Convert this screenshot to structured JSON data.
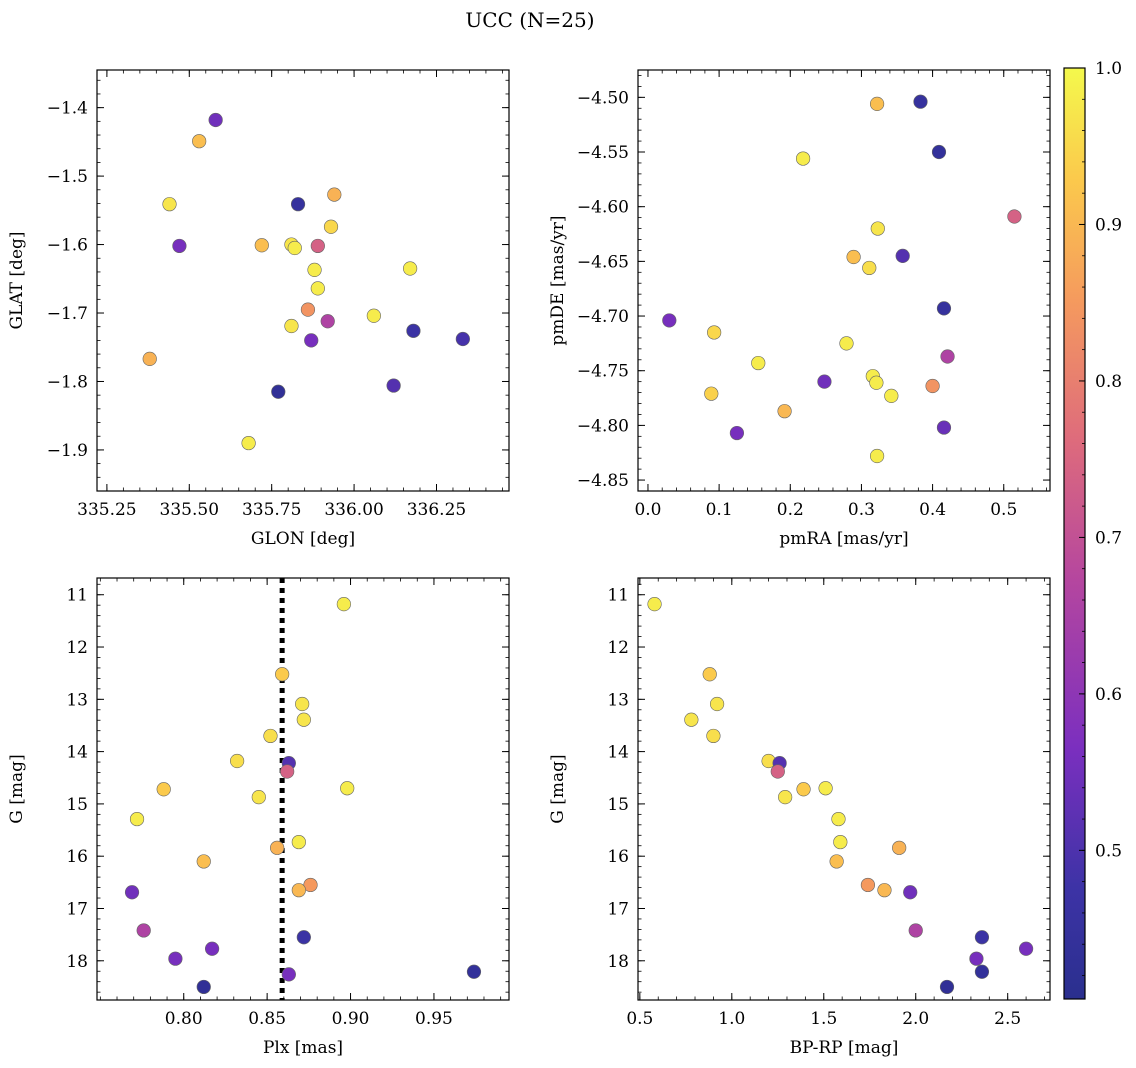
{
  "figure": {
    "title": "UCC (N=25)"
  },
  "colorbar": {
    "min": 0.405,
    "max": 1.0,
    "ticks": [
      "0.5",
      "0.6",
      "0.7",
      "0.8",
      "0.9",
      "1.0"
    ],
    "tick_values": [
      0.5,
      0.6,
      0.7,
      0.8,
      0.9,
      1.0
    ],
    "colormap": "plasma"
  },
  "chart_data": [
    {
      "type": "scatter",
      "name": "glon-glat",
      "xlabel": "GLON [deg]",
      "ylabel": "GLAT [deg]",
      "xlim": [
        335.22,
        336.47
      ],
      "ylim": [
        -1.96,
        -1.345
      ],
      "xticks": [
        335.25,
        335.5,
        335.75,
        336.0,
        336.25
      ],
      "xtick_labels": [
        "335.25",
        "335.50",
        "335.75",
        "336.00",
        "336.25"
      ],
      "yticks": [
        -1.4,
        -1.5,
        -1.6,
        -1.7,
        -1.8,
        -1.9
      ],
      "ytick_labels": [
        "−1.4",
        "−1.5",
        "−1.6",
        "−1.7",
        "−1.8",
        "−1.9"
      ],
      "points": [
        {
          "x": 335.58,
          "y": -1.418,
          "c": 0.55
        },
        {
          "x": 335.53,
          "y": -1.449,
          "c": 0.91
        },
        {
          "x": 335.44,
          "y": -1.541,
          "c": 0.97
        },
        {
          "x": 335.47,
          "y": -1.602,
          "c": 0.56
        },
        {
          "x": 335.83,
          "y": -1.541,
          "c": 0.45
        },
        {
          "x": 335.94,
          "y": -1.527,
          "c": 0.89
        },
        {
          "x": 335.93,
          "y": -1.574,
          "c": 0.95
        },
        {
          "x": 335.72,
          "y": -1.601,
          "c": 0.91
        },
        {
          "x": 335.81,
          "y": -1.6,
          "c": 0.97
        },
        {
          "x": 335.82,
          "y": -1.605,
          "c": 0.98
        },
        {
          "x": 335.89,
          "y": -1.602,
          "c": 0.74
        },
        {
          "x": 335.88,
          "y": -1.637,
          "c": 0.98
        },
        {
          "x": 336.17,
          "y": -1.635,
          "c": 0.98
        },
        {
          "x": 335.89,
          "y": -1.664,
          "c": 0.98
        },
        {
          "x": 335.86,
          "y": -1.695,
          "c": 0.84
        },
        {
          "x": 336.06,
          "y": -1.704,
          "c": 0.98
        },
        {
          "x": 335.92,
          "y": -1.712,
          "c": 0.66
        },
        {
          "x": 335.81,
          "y": -1.719,
          "c": 0.97
        },
        {
          "x": 336.18,
          "y": -1.726,
          "c": 0.47
        },
        {
          "x": 335.87,
          "y": -1.74,
          "c": 0.56
        },
        {
          "x": 336.33,
          "y": -1.738,
          "c": 0.49
        },
        {
          "x": 335.38,
          "y": -1.767,
          "c": 0.89
        },
        {
          "x": 336.12,
          "y": -1.806,
          "c": 0.51
        },
        {
          "x": 335.77,
          "y": -1.815,
          "c": 0.43
        },
        {
          "x": 335.68,
          "y": -1.89,
          "c": 0.98
        }
      ]
    },
    {
      "type": "scatter",
      "name": "pmra-pmde",
      "xlabel": "pmRA [mas/yr]",
      "ylabel": "pmDE [mas/yr]",
      "xlim": [
        -0.014,
        0.565
      ],
      "ylim": [
        -4.86,
        -4.475
      ],
      "xticks": [
        0.0,
        0.1,
        0.2,
        0.3,
        0.4,
        0.5
      ],
      "xtick_labels": [
        "0.0",
        "0.1",
        "0.2",
        "0.3",
        "0.4",
        "0.5"
      ],
      "yticks": [
        -4.5,
        -4.55,
        -4.6,
        -4.65,
        -4.7,
        -4.75,
        -4.8,
        -4.85
      ],
      "ytick_labels": [
        "−4.50",
        "−4.55",
        "−4.60",
        "−4.65",
        "−4.70",
        "−4.75",
        "−4.80",
        "−4.85"
      ],
      "points": [
        {
          "x": 0.322,
          "y": -4.506,
          "c": 0.91
        },
        {
          "x": 0.383,
          "y": -4.504,
          "c": 0.45
        },
        {
          "x": 0.409,
          "y": -4.55,
          "c": 0.44
        },
        {
          "x": 0.218,
          "y": -4.556,
          "c": 0.98
        },
        {
          "x": 0.515,
          "y": -4.609,
          "c": 0.74
        },
        {
          "x": 0.323,
          "y": -4.62,
          "c": 0.97
        },
        {
          "x": 0.289,
          "y": -4.646,
          "c": 0.91
        },
        {
          "x": 0.358,
          "y": -4.645,
          "c": 0.51
        },
        {
          "x": 0.311,
          "y": -4.656,
          "c": 0.96
        },
        {
          "x": 0.416,
          "y": -4.693,
          "c": 0.45
        },
        {
          "x": 0.03,
          "y": -4.704,
          "c": 0.56
        },
        {
          "x": 0.093,
          "y": -4.715,
          "c": 0.95
        },
        {
          "x": 0.279,
          "y": -4.725,
          "c": 0.98
        },
        {
          "x": 0.421,
          "y": -4.737,
          "c": 0.66
        },
        {
          "x": 0.155,
          "y": -4.743,
          "c": 0.98
        },
        {
          "x": 0.316,
          "y": -4.755,
          "c": 0.98
        },
        {
          "x": 0.248,
          "y": -4.76,
          "c": 0.55
        },
        {
          "x": 0.321,
          "y": -4.761,
          "c": 0.98
        },
        {
          "x": 0.4,
          "y": -4.764,
          "c": 0.84
        },
        {
          "x": 0.089,
          "y": -4.771,
          "c": 0.94
        },
        {
          "x": 0.342,
          "y": -4.773,
          "c": 0.98
        },
        {
          "x": 0.192,
          "y": -4.787,
          "c": 0.9
        },
        {
          "x": 0.416,
          "y": -4.802,
          "c": 0.54
        },
        {
          "x": 0.125,
          "y": -4.807,
          "c": 0.56
        },
        {
          "x": 0.322,
          "y": -4.828,
          "c": 0.98
        }
      ]
    },
    {
      "type": "scatter",
      "name": "plx-g",
      "xlabel": "Plx [mas]",
      "ylabel": "G [mag]",
      "xlim": [
        0.748,
        0.995
      ],
      "ylim": [
        18.75,
        10.68
      ],
      "reference_line": {
        "x": 0.859,
        "style": "dotted"
      },
      "xticks": [
        0.8,
        0.85,
        0.9,
        0.95
      ],
      "xtick_labels": [
        "0.80",
        "0.85",
        "0.90",
        "0.95"
      ],
      "yticks": [
        11,
        12,
        13,
        14,
        15,
        16,
        17,
        18
      ],
      "ytick_labels": [
        "11",
        "12",
        "13",
        "14",
        "15",
        "16",
        "17",
        "18"
      ],
      "points": [
        {
          "x": 0.896,
          "y": 11.18,
          "c": 0.98
        },
        {
          "x": 0.859,
          "y": 12.52,
          "c": 0.93
        },
        {
          "x": 0.871,
          "y": 13.09,
          "c": 0.97
        },
        {
          "x": 0.872,
          "y": 13.39,
          "c": 0.97
        },
        {
          "x": 0.852,
          "y": 13.7,
          "c": 0.96
        },
        {
          "x": 0.832,
          "y": 14.18,
          "c": 0.96
        },
        {
          "x": 0.863,
          "y": 14.22,
          "c": 0.51
        },
        {
          "x": 0.862,
          "y": 14.38,
          "c": 0.74
        },
        {
          "x": 0.788,
          "y": 14.72,
          "c": 0.93
        },
        {
          "x": 0.898,
          "y": 14.7,
          "c": 0.98
        },
        {
          "x": 0.845,
          "y": 14.87,
          "c": 0.97
        },
        {
          "x": 0.772,
          "y": 15.29,
          "c": 0.98
        },
        {
          "x": 0.869,
          "y": 15.73,
          "c": 0.98
        },
        {
          "x": 0.856,
          "y": 15.84,
          "c": 0.89
        },
        {
          "x": 0.812,
          "y": 16.1,
          "c": 0.91
        },
        {
          "x": 0.876,
          "y": 16.55,
          "c": 0.85
        },
        {
          "x": 0.869,
          "y": 16.65,
          "c": 0.9
        },
        {
          "x": 0.769,
          "y": 16.69,
          "c": 0.55
        },
        {
          "x": 0.776,
          "y": 17.42,
          "c": 0.66
        },
        {
          "x": 0.872,
          "y": 17.55,
          "c": 0.47
        },
        {
          "x": 0.817,
          "y": 17.77,
          "c": 0.56
        },
        {
          "x": 0.795,
          "y": 17.96,
          "c": 0.56
        },
        {
          "x": 0.974,
          "y": 18.21,
          "c": 0.44
        },
        {
          "x": 0.863,
          "y": 18.26,
          "c": 0.56
        },
        {
          "x": 0.812,
          "y": 18.5,
          "c": 0.43
        }
      ]
    },
    {
      "type": "scatter",
      "name": "bprp-g",
      "xlabel": "BP-RP [mag]",
      "ylabel": "G [mag]",
      "xlim": [
        0.49,
        2.73
      ],
      "ylim": [
        18.75,
        10.68
      ],
      "xticks": [
        0.5,
        1.0,
        1.5,
        2.0,
        2.5
      ],
      "xtick_labels": [
        "0.5",
        "1.0",
        "1.5",
        "2.0",
        "2.5"
      ],
      "yticks": [
        11,
        12,
        13,
        14,
        15,
        16,
        17,
        18
      ],
      "ytick_labels": [
        "11",
        "12",
        "13",
        "14",
        "15",
        "16",
        "17",
        "18"
      ],
      "points": [
        {
          "x": 0.58,
          "y": 11.18,
          "c": 0.98
        },
        {
          "x": 0.88,
          "y": 12.52,
          "c": 0.93
        },
        {
          "x": 0.92,
          "y": 13.09,
          "c": 0.97
        },
        {
          "x": 0.78,
          "y": 13.39,
          "c": 0.97
        },
        {
          "x": 0.9,
          "y": 13.7,
          "c": 0.96
        },
        {
          "x": 1.2,
          "y": 14.18,
          "c": 0.96
        },
        {
          "x": 1.26,
          "y": 14.22,
          "c": 0.51
        },
        {
          "x": 1.25,
          "y": 14.38,
          "c": 0.74
        },
        {
          "x": 1.39,
          "y": 14.72,
          "c": 0.93
        },
        {
          "x": 1.51,
          "y": 14.7,
          "c": 0.98
        },
        {
          "x": 1.29,
          "y": 14.87,
          "c": 0.97
        },
        {
          "x": 1.58,
          "y": 15.29,
          "c": 0.98
        },
        {
          "x": 1.59,
          "y": 15.73,
          "c": 0.98
        },
        {
          "x": 1.91,
          "y": 15.84,
          "c": 0.89
        },
        {
          "x": 1.57,
          "y": 16.1,
          "c": 0.91
        },
        {
          "x": 1.74,
          "y": 16.55,
          "c": 0.85
        },
        {
          "x": 1.83,
          "y": 16.65,
          "c": 0.9
        },
        {
          "x": 1.97,
          "y": 16.69,
          "c": 0.55
        },
        {
          "x": 2.0,
          "y": 17.42,
          "c": 0.66
        },
        {
          "x": 2.36,
          "y": 17.55,
          "c": 0.47
        },
        {
          "x": 2.6,
          "y": 17.77,
          "c": 0.56
        },
        {
          "x": 2.33,
          "y": 17.96,
          "c": 0.56
        },
        {
          "x": 2.36,
          "y": 18.21,
          "c": 0.44
        },
        {
          "x": 2.17,
          "y": 18.5,
          "c": 0.43
        }
      ]
    }
  ]
}
